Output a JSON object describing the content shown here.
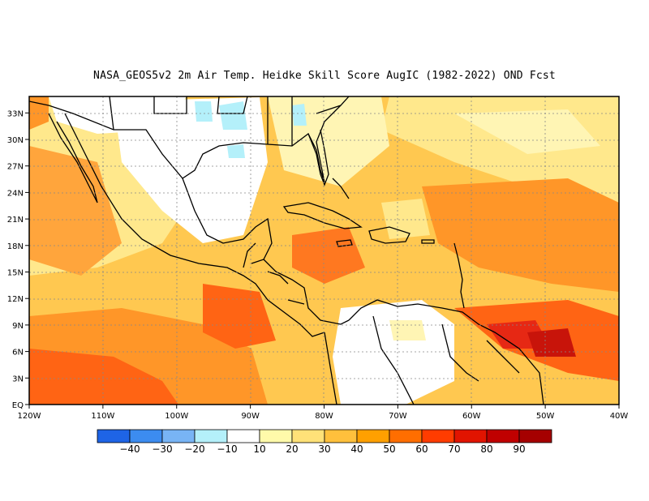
{
  "title": "NASA_GEOS5v2  2m Air Temp. Heidke Skill Score AugIC (1982-2022) OND Fcst",
  "lon_labels": [
    "120W",
    "110W",
    "100W",
    "90W",
    "80W",
    "70W",
    "60W",
    "50W",
    "40W"
  ],
  "lat_labels": [
    "EQ",
    "3N",
    "6N",
    "9N",
    "12N",
    "15N",
    "18N",
    "21N",
    "24N",
    "27N",
    "30N",
    "33N"
  ],
  "colorbar": {
    "labels": [
      "−40",
      "−30",
      "−20",
      "−10",
      "10",
      "20",
      "30",
      "40",
      "50",
      "60",
      "70",
      "80",
      "90"
    ],
    "colors": [
      "#1e64e6",
      "#3c8cf0",
      "#78b4f5",
      "#b4f0fa",
      "#ffffff",
      "#fffaaa",
      "#ffe178",
      "#ffc03c",
      "#ffa000",
      "#ff6e00",
      "#ff3c00",
      "#e11400",
      "#c00000",
      "#a50000"
    ]
  },
  "map_colors": {
    "land_outline": "#000000",
    "ocean_base": "#ffc850",
    "light": "#ffe88c",
    "pale": "#fff5b4",
    "orange": "#ff9628",
    "deep_orange": "#ff6414",
    "red": "#e62814",
    "white": "#ffffff",
    "cyan": "#b4f0fa"
  }
}
